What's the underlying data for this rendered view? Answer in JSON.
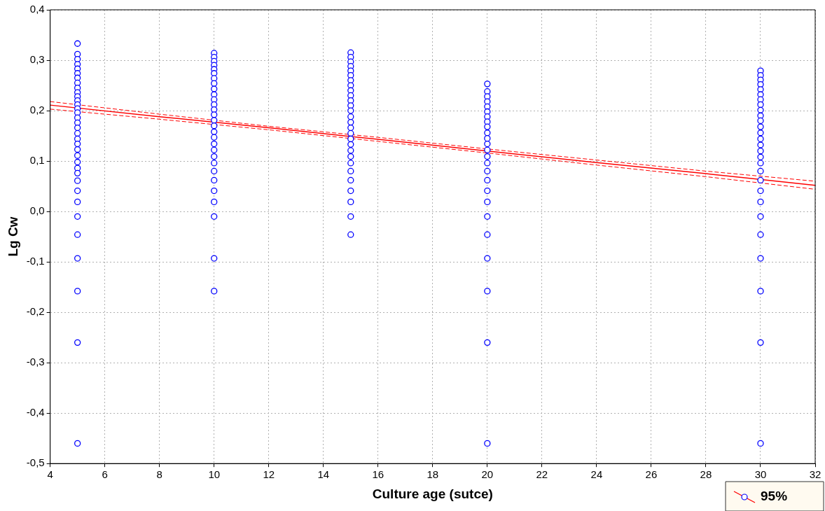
{
  "chart_data": {
    "type": "scatter",
    "xlabel": "Culture age (sutce)",
    "ylabel": "Lg Cw",
    "xlim": [
      4,
      32
    ],
    "xticks": [
      4,
      6,
      8,
      10,
      12,
      14,
      16,
      18,
      20,
      22,
      24,
      26,
      28,
      30,
      32
    ],
    "ylim": [
      -0.5,
      0.4
    ],
    "yticks": [
      {
        "value": -0.5,
        "label": "-0,5"
      },
      {
        "value": -0.4,
        "label": "-0,4"
      },
      {
        "value": -0.3,
        "label": "-0,3"
      },
      {
        "value": -0.2,
        "label": "-0,2"
      },
      {
        "value": -0.1,
        "label": "-0,1"
      },
      {
        "value": 0,
        "label": "0,0"
      },
      {
        "value": 0.1,
        "label": "0,1"
      },
      {
        "value": 0.2,
        "label": "0,2"
      },
      {
        "value": 0.3,
        "label": "0,3"
      },
      {
        "value": 0.4,
        "label": "0,4"
      }
    ],
    "grid": true,
    "legend": "bottom right",
    "marker": "circle",
    "series": [
      {
        "color": "#0000ff",
        "x": [
          5,
          5,
          5,
          5,
          5,
          5,
          5,
          5,
          5,
          5,
          5,
          5,
          5,
          5,
          5,
          5,
          5,
          5,
          5,
          5,
          5,
          5,
          5,
          5,
          5,
          5,
          5,
          5,
          5,
          5,
          5,
          5,
          5,
          5,
          5,
          10,
          10,
          10,
          10,
          10,
          10,
          10,
          10,
          10,
          10,
          10,
          10,
          10,
          10,
          10,
          10,
          10,
          10,
          10,
          10,
          10,
          10,
          10,
          10,
          10,
          10,
          10,
          10,
          10,
          15,
          15,
          15,
          15,
          15,
          15,
          15,
          15,
          15,
          15,
          15,
          15,
          15,
          15,
          15,
          15,
          15,
          15,
          15,
          15,
          15,
          15,
          15,
          15,
          15,
          15,
          15,
          15,
          20,
          20,
          20,
          20,
          20,
          20,
          20,
          20,
          20,
          20,
          20,
          20,
          20,
          20,
          20,
          20,
          20,
          20,
          20,
          20,
          20,
          20,
          20,
          20,
          20,
          30,
          30,
          30,
          30,
          30,
          30,
          30,
          30,
          30,
          30,
          30,
          30,
          30,
          30,
          30,
          30,
          30,
          30,
          30,
          30,
          30,
          30,
          30,
          30,
          30,
          30,
          30,
          30
        ],
        "values": [
          0.333,
          0.312,
          0.302,
          0.292,
          0.283,
          0.274,
          0.265,
          0.255,
          0.245,
          0.236,
          0.228,
          0.22,
          0.212,
          0.204,
          0.196,
          0.186,
          0.176,
          0.166,
          0.155,
          0.144,
          0.134,
          0.123,
          0.111,
          0.098,
          0.086,
          0.076,
          0.061,
          0.041,
          0.019,
          -0.01,
          -0.046,
          -0.093,
          -0.158,
          -0.26,
          -0.46,
          0.314,
          0.306,
          0.298,
          0.29,
          0.282,
          0.274,
          0.264,
          0.254,
          0.243,
          0.232,
          0.222,
          0.212,
          0.202,
          0.192,
          0.181,
          0.17,
          0.158,
          0.147,
          0.134,
          0.122,
          0.109,
          0.096,
          0.08,
          0.062,
          0.041,
          0.019,
          -0.01,
          -0.093,
          -0.158,
          0.315,
          0.306,
          0.297,
          0.288,
          0.279,
          0.27,
          0.26,
          0.25,
          0.24,
          0.23,
          0.22,
          0.21,
          0.2,
          0.188,
          0.177,
          0.166,
          0.155,
          0.144,
          0.133,
          0.121,
          0.109,
          0.096,
          0.08,
          0.062,
          0.041,
          0.019,
          -0.01,
          -0.046,
          0.253,
          0.238,
          0.228,
          0.218,
          0.208,
          0.198,
          0.188,
          0.178,
          0.168,
          0.156,
          0.145,
          0.134,
          0.122,
          0.109,
          0.096,
          0.08,
          0.062,
          0.041,
          0.019,
          -0.01,
          -0.046,
          -0.093,
          -0.158,
          -0.26,
          -0.46,
          0.279,
          0.27,
          0.261,
          0.252,
          0.242,
          0.232,
          0.222,
          0.212,
          0.201,
          0.19,
          0.18,
          0.168,
          0.156,
          0.144,
          0.132,
          0.12,
          0.108,
          0.096,
          0.08,
          0.062,
          0.041,
          0.019,
          -0.01,
          -0.046,
          -0.093,
          -0.158,
          -0.26,
          -0.46
        ]
      },
      {
        "type": "line",
        "name": "95%",
        "color": "#ff0000",
        "marker": "none",
        "line_style": "solid",
        "x": [
          4,
          8,
          12,
          16,
          20,
          24,
          28,
          32
        ],
        "values": [
          0.211,
          0.188,
          0.166,
          0.143,
          0.12,
          0.097,
          0.075,
          0.052
        ]
      },
      {
        "type": "line",
        "color": "#ff0000",
        "marker": "none",
        "line_style": "dashed",
        "x": [
          4,
          8,
          12,
          16,
          20,
          24,
          28,
          32
        ],
        "values": [
          0.203,
          0.183,
          0.162,
          0.139,
          0.116,
          0.092,
          0.069,
          0.044
        ]
      },
      {
        "type": "line",
        "color": "#ff0000",
        "marker": "none",
        "line_style": "dashed",
        "x": [
          4,
          8,
          12,
          16,
          20,
          24,
          28,
          32
        ],
        "values": [
          0.218,
          0.193,
          0.169,
          0.147,
          0.124,
          0.102,
          0.08,
          0.06
        ]
      }
    ]
  }
}
